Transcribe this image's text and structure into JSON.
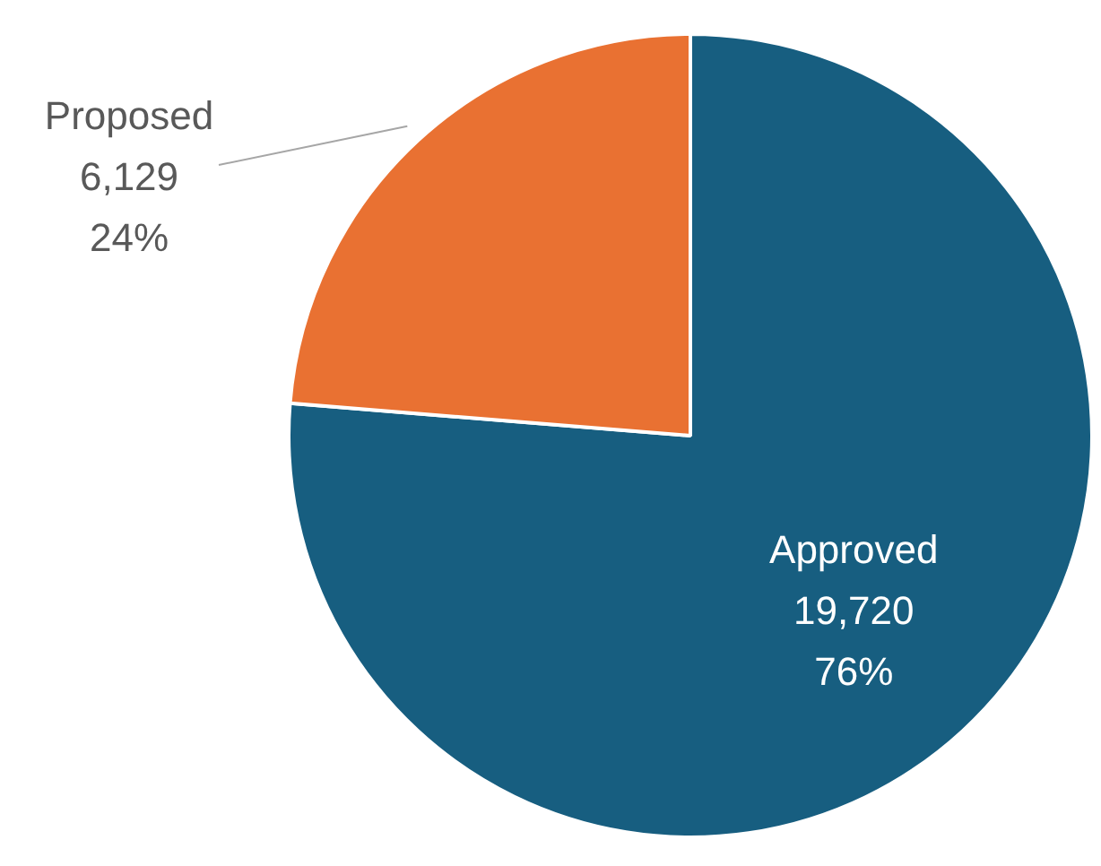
{
  "chart_data": {
    "type": "pie",
    "categories": [
      "Approved",
      "Proposed"
    ],
    "values": [
      19720,
      6129
    ],
    "colors": [
      "#175e80",
      "#e97132"
    ],
    "value_labels": [
      "19,720\n76%",
      "6,129\n24%"
    ]
  }
}
